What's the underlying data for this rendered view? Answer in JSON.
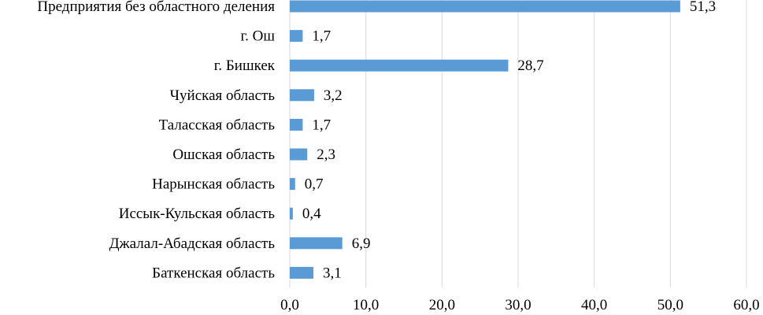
{
  "chart_data": {
    "type": "bar",
    "orientation": "horizontal",
    "categories": [
      "Предприятия без областного деления",
      "г. Ош",
      "г. Бишкек",
      "Чуйская область",
      "Таласская область",
      "Ошская область",
      "Нарынская область",
      "Иссык-Кульская область",
      "Джалал-Абадская область",
      "Баткенская область"
    ],
    "values": [
      51.3,
      1.7,
      28.7,
      3.2,
      1.7,
      2.3,
      0.7,
      0.4,
      6.9,
      3.1
    ],
    "value_labels": [
      "51,3",
      "1,7",
      "28,7",
      "3,2",
      "1,7",
      "2,3",
      "0,7",
      "0,4",
      "6,9",
      "3,1"
    ],
    "xlim": [
      0,
      60
    ],
    "xticks": [
      0,
      10,
      20,
      30,
      40,
      50,
      60
    ],
    "xtick_labels": [
      "0,0",
      "10,0",
      "20,0",
      "30,0",
      "40,0",
      "50,0",
      "60,0"
    ],
    "title": "",
    "xlabel": "",
    "ylabel": "",
    "grid": "vertical",
    "legend": "none",
    "colors": {
      "bar": "#5b9bd5",
      "grid": "#d9d9d9",
      "text": "#000000"
    }
  }
}
